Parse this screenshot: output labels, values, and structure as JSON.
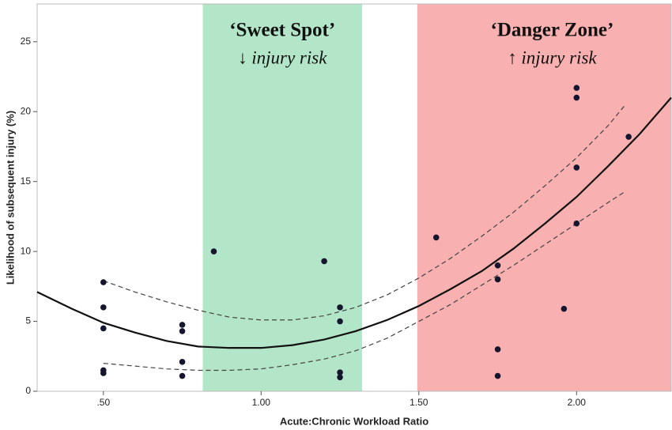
{
  "chart_data": {
    "type": "scatter",
    "xlabel": "Acute:Chronic Workload Ratio",
    "ylabel": "Likelihood of subsequent injury (%)",
    "xlim": [
      0.29,
      2.3
    ],
    "ylim": [
      0,
      27.7
    ],
    "xticks": [
      {
        "value": 0.5,
        "label": ".50"
      },
      {
        "value": 1.0,
        "label": "1.00"
      },
      {
        "value": 1.5,
        "label": "1.50"
      },
      {
        "value": 2.0,
        "label": "2.00"
      }
    ],
    "yticks": [
      0,
      5,
      10,
      15,
      20,
      25
    ],
    "regions": [
      {
        "label": "‘Sweet Spot’",
        "sublabel": "↓ injury risk",
        "range": [
          0.815,
          1.32
        ],
        "color": "#b3e6c8"
      },
      {
        "label": "‘Danger Zone’",
        "sublabel": "↑ injury risk",
        "range": [
          1.495,
          2.3
        ],
        "color": "#f9b0b0"
      }
    ],
    "points": {
      "color": "#15152e",
      "x": [
        0.5,
        0.5,
        0.5,
        0.5,
        0.5,
        0.75,
        0.75,
        0.75,
        0.75,
        0.85,
        1.2,
        1.25,
        1.25,
        1.25,
        1.25,
        1.555,
        1.75,
        1.75,
        1.75,
        1.75,
        1.96,
        2.0,
        2.0,
        2.0,
        2.0,
        2.165
      ],
      "values": [
        7.8,
        6.0,
        4.5,
        1.5,
        1.3,
        4.75,
        4.3,
        2.1,
        1.1,
        10.0,
        9.3,
        6.0,
        5.0,
        1.35,
        1.0,
        11.0,
        9.0,
        8.0,
        3.0,
        1.1,
        5.9,
        21.7,
        21.0,
        16.0,
        12.0,
        18.2
      ]
    },
    "fit": {
      "color": "#111",
      "x": [
        0.29,
        0.4,
        0.5,
        0.6,
        0.7,
        0.8,
        0.9,
        1.0,
        1.1,
        1.2,
        1.3,
        1.4,
        1.5,
        1.6,
        1.7,
        1.8,
        1.9,
        2.0,
        2.1,
        2.2,
        2.3
      ],
      "values": [
        7.1,
        5.9,
        4.9,
        4.2,
        3.6,
        3.2,
        3.1,
        3.1,
        3.3,
        3.7,
        4.3,
        5.1,
        6.1,
        7.3,
        8.6,
        10.2,
        12.0,
        13.9,
        16.1,
        18.4,
        21.0
      ]
    },
    "ci_upper": {
      "color": "#444",
      "x": [
        0.5,
        0.6,
        0.7,
        0.8,
        0.9,
        1.0,
        1.1,
        1.2,
        1.3,
        1.4,
        1.5,
        1.6,
        1.7,
        1.8,
        1.9,
        2.0,
        2.1,
        2.155
      ],
      "values": [
        7.9,
        7.1,
        6.4,
        5.8,
        5.3,
        5.1,
        5.1,
        5.4,
        6.0,
        6.9,
        8.1,
        9.5,
        11.1,
        12.8,
        14.7,
        16.7,
        19.0,
        20.5
      ]
    },
    "ci_lower": {
      "color": "#444",
      "x": [
        0.5,
        0.6,
        0.7,
        0.8,
        0.9,
        1.0,
        1.1,
        1.2,
        1.3,
        1.4,
        1.5,
        1.6,
        1.7,
        1.8,
        1.9,
        2.0,
        2.1,
        2.155
      ],
      "values": [
        2.0,
        1.8,
        1.6,
        1.5,
        1.5,
        1.6,
        1.9,
        2.3,
        2.9,
        3.8,
        5.0,
        6.2,
        7.6,
        9.0,
        10.5,
        12.0,
        13.5,
        14.3
      ]
    }
  }
}
